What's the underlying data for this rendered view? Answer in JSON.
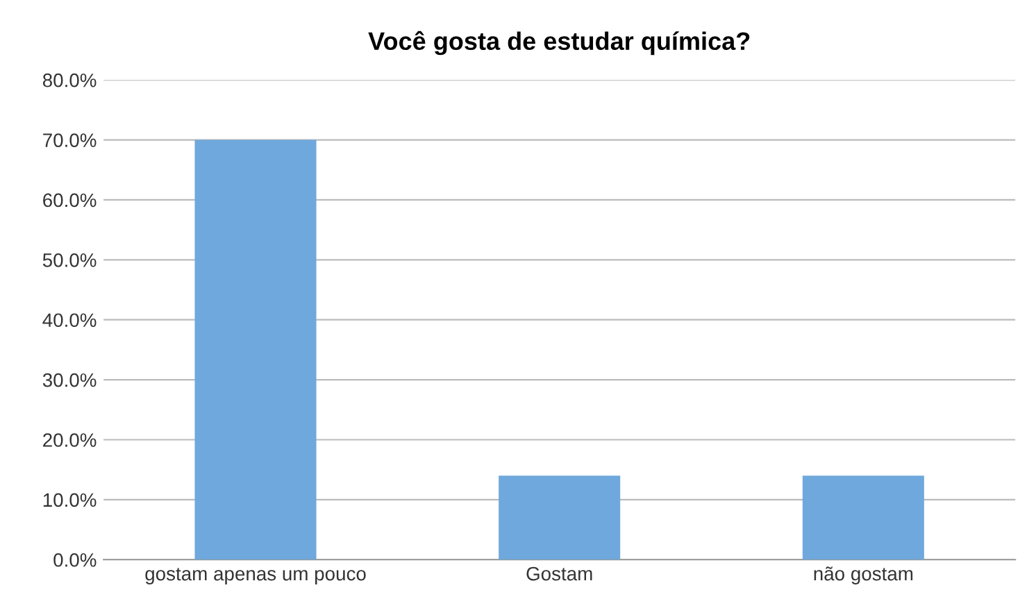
{
  "chart_data": {
    "type": "bar",
    "title": "Você gosta de estudar química?",
    "categories": [
      "gostam apenas um pouco",
      "Gostam",
      "não gostam"
    ],
    "values": [
      70,
      14,
      14
    ],
    "color": "#6fa8dc",
    "ylim": [
      0,
      80
    ],
    "yticks": [
      {
        "value": 0,
        "label": "0.0%"
      },
      {
        "value": 10,
        "label": "10.0%"
      },
      {
        "value": 20,
        "label": "20.0%"
      },
      {
        "value": 30,
        "label": "30.0%"
      },
      {
        "value": 40,
        "label": "40.0%"
      },
      {
        "value": 50,
        "label": "50.0%"
      },
      {
        "value": 60,
        "label": "60.0%"
      },
      {
        "value": 70,
        "label": "70.0%"
      },
      {
        "value": 80,
        "label": "80.0%"
      }
    ],
    "grid": "y",
    "legend": false
  }
}
